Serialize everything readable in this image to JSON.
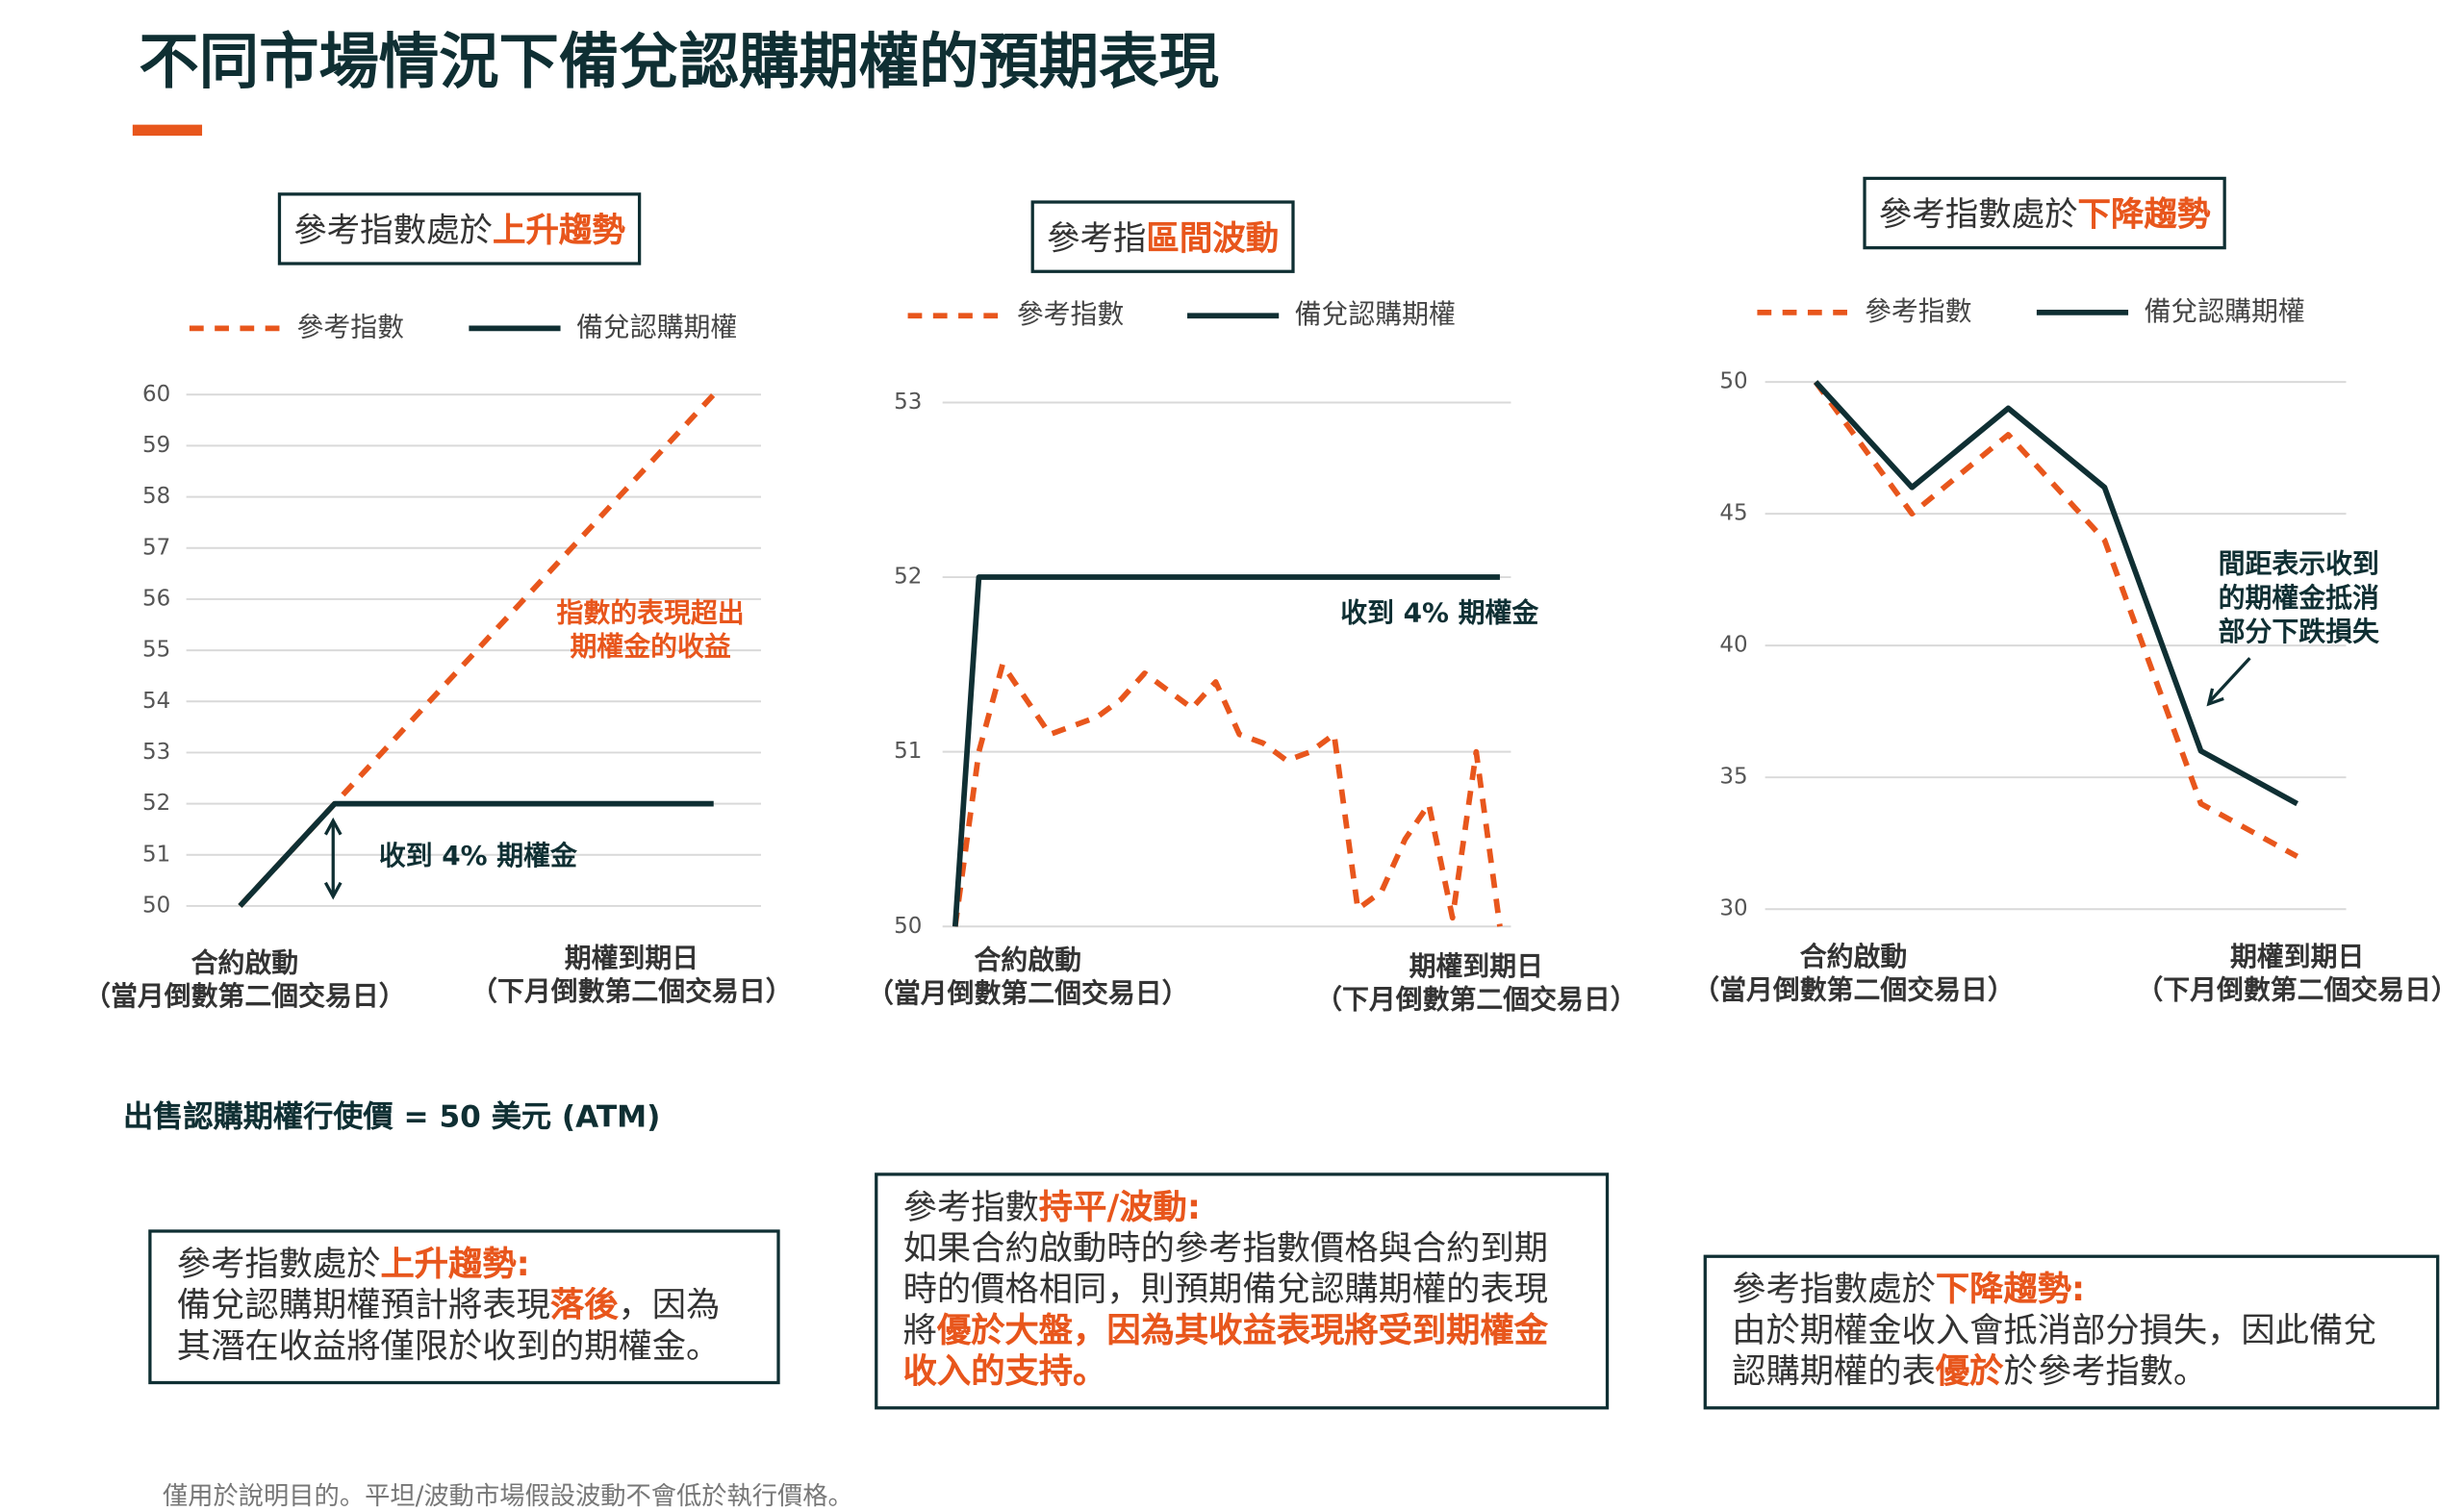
{
  "title": "不同市場情況下備兌認購期權的預期表現",
  "chart_data": [
    {
      "type": "line",
      "title": [
        {
          "text": "參考指數處於",
          "highlight": false
        },
        {
          "text": "上升趨勢",
          "highlight": true
        }
      ],
      "categories": [
        "合約啟動",
        null,
        null,
        null,
        null,
        "期權到期日"
      ],
      "category_notes": [
        "（當月倒數第二個交易日）",
        null,
        null,
        null,
        null,
        "（下月倒數第二個交易日）"
      ],
      "series": [
        {
          "name": "參考指數",
          "color": "#e8561c",
          "style": "dashed",
          "values": [
            50,
            52,
            54,
            56,
            58,
            60
          ]
        },
        {
          "name": "備兌認購期權",
          "color": "#0f2f33",
          "style": "solid",
          "values": [
            50,
            52,
            52,
            52,
            52,
            52
          ]
        }
      ],
      "ylim": [
        50,
        60
      ],
      "yticks": [
        50,
        51,
        52,
        53,
        54,
        55,
        56,
        57,
        58,
        59,
        60
      ],
      "grid": true,
      "annotations": [
        {
          "lines": [
            "指數的表現超出",
            "期權金的收益"
          ],
          "color": "#e8561c"
        },
        {
          "lines": [
            "收到 4% 期權金"
          ],
          "color": "#0f2f33"
        }
      ]
    },
    {
      "type": "line",
      "title": [
        {
          "text": "參考指",
          "highlight": false
        },
        {
          "text": "區間波動",
          "highlight": true
        }
      ],
      "categories": [
        "合約啟動",
        null,
        null,
        null,
        null,
        null,
        null,
        null,
        null,
        null,
        null,
        null,
        null,
        null,
        null,
        null,
        null,
        null,
        null,
        null,
        null,
        null,
        null,
        "期權到期日"
      ],
      "category_notes": [
        "（當月倒數第二個交易日）",
        null,
        null,
        null,
        null,
        null,
        null,
        null,
        null,
        null,
        null,
        null,
        null,
        null,
        null,
        null,
        null,
        null,
        null,
        null,
        null,
        null,
        null,
        "（下月倒數第二個交易日）"
      ],
      "series": [
        {
          "name": "參考指數",
          "color": "#e8561c",
          "style": "dashed",
          "values": [
            50,
            51.0,
            51.5,
            51.3,
            51.1,
            51.15,
            51.2,
            51.3,
            51.45,
            51.35,
            51.25,
            51.4,
            51.1,
            51.05,
            50.95,
            51.0,
            51.1,
            50.1,
            50.2,
            50.5,
            50.7,
            50.05,
            51.0,
            50.0
          ]
        },
        {
          "name": "備兌認購期權",
          "color": "#0f2f33",
          "style": "solid",
          "values": [
            50,
            52,
            52,
            52,
            52,
            52,
            52,
            52,
            52,
            52,
            52,
            52,
            52,
            52,
            52,
            52,
            52,
            52,
            52,
            52,
            52,
            52,
            52,
            52
          ]
        }
      ],
      "ylim": [
        50,
        53
      ],
      "yticks": [
        50,
        51,
        52,
        53
      ],
      "grid": true,
      "annotations": [
        {
          "lines": [
            "收到 4% 期權金"
          ],
          "color": "#0f2f33"
        }
      ]
    },
    {
      "type": "line",
      "title": [
        {
          "text": "參考指數處於",
          "highlight": false
        },
        {
          "text": "下降趨勢",
          "highlight": true
        }
      ],
      "categories": [
        "合約啟動",
        null,
        null,
        null,
        null,
        "期權到期日"
      ],
      "category_notes": [
        "（當月倒數第二個交易日）",
        null,
        null,
        null,
        null,
        "（下月倒數第二個交易日）"
      ],
      "series": [
        {
          "name": "參考指數",
          "color": "#e8561c",
          "style": "dashed",
          "values": [
            50,
            45,
            48,
            44,
            34,
            32
          ]
        },
        {
          "name": "備兌認購期權",
          "color": "#0f2f33",
          "style": "solid",
          "values": [
            50,
            46,
            49,
            46,
            36,
            34
          ]
        }
      ],
      "ylim": [
        30,
        50
      ],
      "yticks": [
        30,
        35,
        40,
        45,
        50
      ],
      "grid": true,
      "annotations": [
        {
          "lines": [
            "間距表示收到",
            "的期權金抵消",
            "部分下跌損失"
          ],
          "color": "#0f2f33"
        }
      ]
    }
  ],
  "strike_note": "出售認購期權行使價 = 50 美元 (ATM)",
  "notes": [
    {
      "heading": [
        {
          "text": "參考指數處於",
          "highlight": false
        },
        {
          "text": "上升趨勢:",
          "highlight": true
        }
      ],
      "body": [
        {
          "text": "備兌認購期權預計將表現",
          "highlight": false
        },
        {
          "text": "落後",
          "highlight": true
        },
        {
          "text": "，因為其潛在收益將僅限於收到的期權金。",
          "highlight": false
        }
      ]
    },
    {
      "heading": [
        {
          "text": "參考指數",
          "highlight": false
        },
        {
          "text": "持平/波動:",
          "highlight": true
        }
      ],
      "body": [
        {
          "text": "如果合約啟動時的參考指數價格與合約到期時的價格相同，則預期備兌認購期權的表現將",
          "highlight": false
        },
        {
          "text": "優於大盤，因為其收益表現將受到期權金收入的支持。",
          "highlight": true
        }
      ]
    },
    {
      "heading": [
        {
          "text": "參考指數處於",
          "highlight": false
        },
        {
          "text": "下降趨勢:",
          "highlight": true
        }
      ],
      "body": [
        {
          "text": "由於期權金收入會抵消部分損失，因此備兌認購期權的表",
          "highlight": false
        },
        {
          "text": "優於",
          "highlight": true
        },
        {
          "text": "於參考指數。",
          "highlight": false
        }
      ]
    }
  ],
  "footnote": "僅用於說明目的。平坦/波動市場假設波動不會低於執行價格。"
}
